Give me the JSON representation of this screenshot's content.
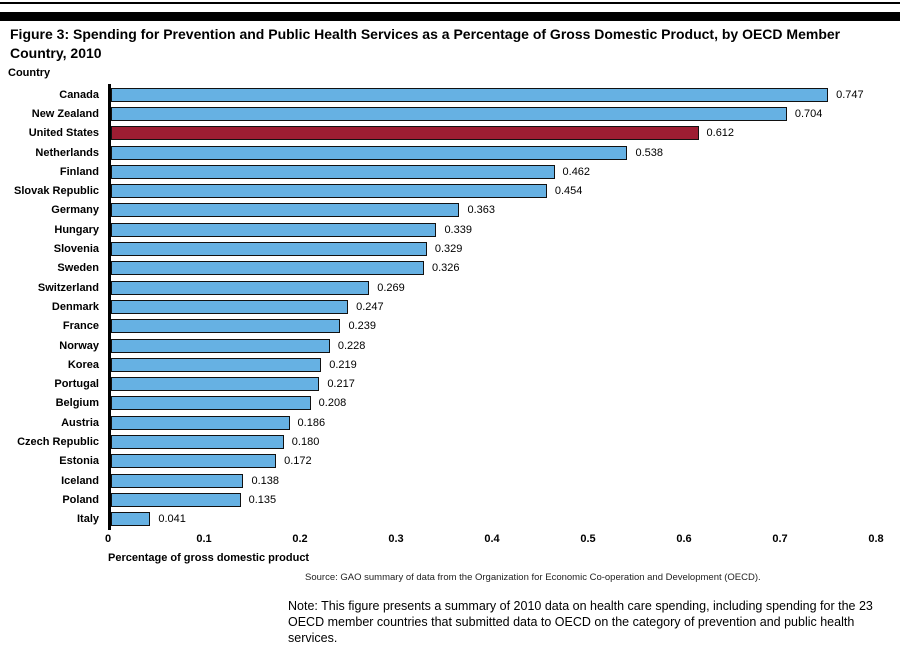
{
  "page": {
    "figure_title": "Figure 3: Spending for Prevention and Public Health Services as a Percentage of Gross Domestic Product, by OECD Member Country, 2010",
    "country_header": "Country",
    "source": "Source: GAO summary of data from the Organization for Economic Co-operation and Development (OECD).",
    "note": "Note: This figure presents a summary of 2010 data on health care spending, including spending for the 23 OECD member countries that submitted data to OECD on the category of prevention and public health services."
  },
  "colors": {
    "bar": "#66B1E3",
    "highlight_bar": "#9D1D32",
    "bar_border": "#111111",
    "axis": "#000000"
  },
  "chart_data": {
    "type": "bar",
    "orientation": "horizontal",
    "title": "Figure 3: Spending for Prevention and Public Health Services as a Percentage of Gross Domestic Product, by OECD Member Country, 2010",
    "xlabel": "Percentage of gross domestic product",
    "ylabel": "Country",
    "xlim": [
      0,
      0.8
    ],
    "xtick_labels": [
      "0",
      "0.1",
      "0.2",
      "0.3",
      "0.4",
      "0.5",
      "0.6",
      "0.7",
      "0.8"
    ],
    "grid": false,
    "legend": false,
    "categories": [
      "Canada",
      "New Zealand",
      "United States",
      "Netherlands",
      "Finland",
      "Slovak Republic",
      "Germany",
      "Hungary",
      "Slovenia",
      "Sweden",
      "Switzerland",
      "Denmark",
      "France",
      "Norway",
      "Korea",
      "Portugal",
      "Belgium",
      "Austria",
      "Czech Republic",
      "Estonia",
      "Iceland",
      "Poland",
      "Italy"
    ],
    "values": [
      0.747,
      0.704,
      0.612,
      0.538,
      0.462,
      0.454,
      0.363,
      0.339,
      0.329,
      0.326,
      0.269,
      0.247,
      0.239,
      0.228,
      0.219,
      0.217,
      0.208,
      0.186,
      0.18,
      0.172,
      0.138,
      0.135,
      0.041
    ],
    "value_labels": [
      "0.747",
      "0.704",
      "0.612",
      "0.538",
      "0.462",
      "0.454",
      "0.363",
      "0.339",
      "0.329",
      "0.326",
      "0.269",
      "0.247",
      "0.239",
      "0.228",
      "0.219",
      "0.217",
      "0.208",
      "0.186",
      "0.180",
      "0.172",
      "0.138",
      "0.135",
      "0.041"
    ],
    "highlight_category": "United States"
  }
}
